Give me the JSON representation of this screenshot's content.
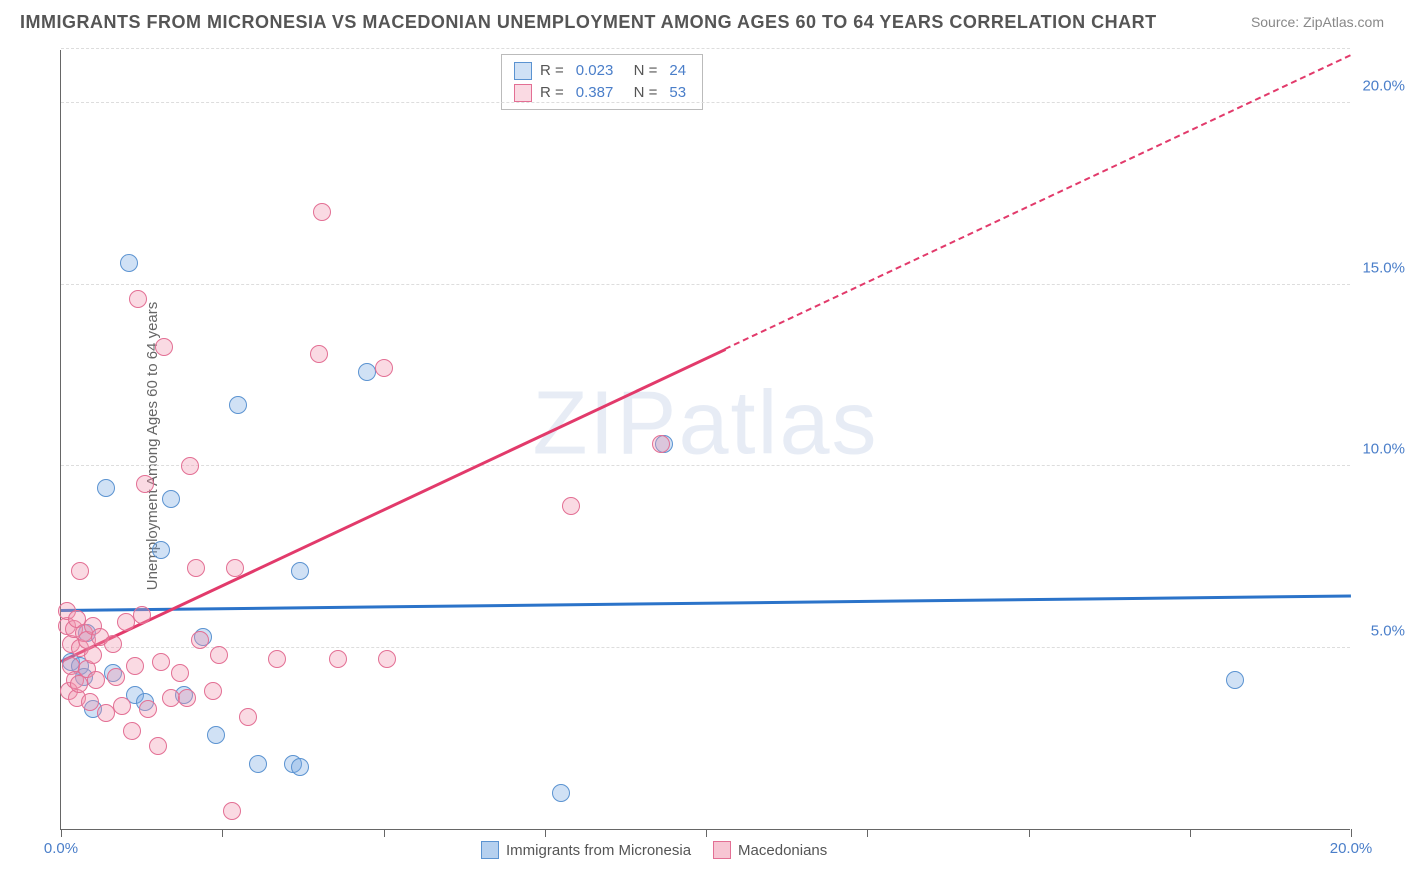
{
  "title": "IMMIGRANTS FROM MICRONESIA VS MACEDONIAN UNEMPLOYMENT AMONG AGES 60 TO 64 YEARS CORRELATION CHART",
  "source": "Source: ZipAtlas.com",
  "y_axis_label": "Unemployment Among Ages 60 to 64 years",
  "watermark": "ZIPatlas",
  "chart": {
    "type": "scatter",
    "xlim": [
      0,
      20
    ],
    "ylim": [
      0,
      21.5
    ],
    "x_ticks": [
      0,
      2.5,
      5,
      7.5,
      10,
      12.5,
      15,
      17.5,
      20
    ],
    "x_tick_labels": {
      "0": "0.0%",
      "20": "20.0%"
    },
    "y_gridlines": [
      5,
      10,
      15,
      20,
      21.5
    ],
    "y_tick_labels": {
      "5": "5.0%",
      "10": "10.0%",
      "15": "15.0%",
      "20": "20.0%"
    },
    "background_color": "#ffffff",
    "grid_color": "#dddddd",
    "point_radius": 9,
    "series": [
      {
        "name": "Immigrants from Micronesia",
        "fill": "rgba(120,170,225,0.35)",
        "stroke": "#5b93d1",
        "r_value": "0.023",
        "n_value": "24",
        "trend": {
          "color": "#2b73c9",
          "y_start": 6.0,
          "y_end": 6.4,
          "x_start": 0,
          "x_end": 20
        },
        "points": [
          [
            0.15,
            4.6
          ],
          [
            0.3,
            4.5
          ],
          [
            0.35,
            4.2
          ],
          [
            0.4,
            5.4
          ],
          [
            0.5,
            3.3
          ],
          [
            0.7,
            9.4
          ],
          [
            0.8,
            4.3
          ],
          [
            1.05,
            15.6
          ],
          [
            1.15,
            3.7
          ],
          [
            1.3,
            3.5
          ],
          [
            1.55,
            7.7
          ],
          [
            1.7,
            9.1
          ],
          [
            1.9,
            3.7
          ],
          [
            2.2,
            5.3
          ],
          [
            2.4,
            2.6
          ],
          [
            2.75,
            11.7
          ],
          [
            3.05,
            1.8
          ],
          [
            3.6,
            1.8
          ],
          [
            3.7,
            1.7
          ],
          [
            3.7,
            7.1
          ],
          [
            4.75,
            12.6
          ],
          [
            7.75,
            1.0
          ],
          [
            9.35,
            10.6
          ],
          [
            18.2,
            4.1
          ]
        ]
      },
      {
        "name": "Macedonians",
        "fill": "rgba(240,150,175,0.35)",
        "stroke": "#e36f94",
        "r_value": "0.387",
        "n_value": "53",
        "trend": {
          "color": "#e23a6b",
          "y_start": 4.6,
          "y_end": 21.3,
          "x_start": 0,
          "x_end": 20,
          "dash_after_x": 10.3
        },
        "points": [
          [
            0.1,
            5.6
          ],
          [
            0.1,
            6.0
          ],
          [
            0.12,
            3.8
          ],
          [
            0.15,
            4.5
          ],
          [
            0.15,
            5.1
          ],
          [
            0.2,
            5.5
          ],
          [
            0.22,
            4.1
          ],
          [
            0.25,
            3.6
          ],
          [
            0.25,
            5.8
          ],
          [
            0.28,
            4.0
          ],
          [
            0.3,
            5.0
          ],
          [
            0.3,
            7.1
          ],
          [
            0.35,
            5.4
          ],
          [
            0.4,
            4.4
          ],
          [
            0.4,
            5.2
          ],
          [
            0.45,
            3.5
          ],
          [
            0.5,
            4.8
          ],
          [
            0.5,
            5.6
          ],
          [
            0.55,
            4.1
          ],
          [
            0.6,
            5.3
          ],
          [
            0.7,
            3.2
          ],
          [
            0.8,
            5.1
          ],
          [
            0.85,
            4.2
          ],
          [
            0.95,
            3.4
          ],
          [
            1.0,
            5.7
          ],
          [
            1.1,
            2.7
          ],
          [
            1.15,
            4.5
          ],
          [
            1.2,
            14.6
          ],
          [
            1.25,
            5.9
          ],
          [
            1.3,
            9.5
          ],
          [
            1.35,
            3.3
          ],
          [
            1.5,
            2.3
          ],
          [
            1.55,
            4.6
          ],
          [
            1.6,
            13.3
          ],
          [
            1.7,
            3.6
          ],
          [
            1.85,
            4.3
          ],
          [
            1.95,
            3.6
          ],
          [
            2.0,
            10.0
          ],
          [
            2.1,
            7.2
          ],
          [
            2.15,
            5.2
          ],
          [
            2.35,
            3.8
          ],
          [
            2.45,
            4.8
          ],
          [
            2.65,
            0.5
          ],
          [
            2.7,
            7.2
          ],
          [
            2.9,
            3.1
          ],
          [
            3.35,
            4.7
          ],
          [
            4.0,
            13.1
          ],
          [
            4.05,
            17.0
          ],
          [
            4.3,
            4.7
          ],
          [
            5.0,
            12.7
          ],
          [
            5.05,
            4.7
          ],
          [
            7.9,
            8.9
          ],
          [
            9.3,
            10.6
          ]
        ]
      }
    ]
  },
  "legend_bottom": [
    {
      "label": "Immigrants from Micronesia",
      "fill": "rgba(120,170,225,0.55)",
      "stroke": "#5b93d1"
    },
    {
      "label": "Macedonians",
      "fill": "rgba(240,150,175,0.55)",
      "stroke": "#e36f94"
    }
  ]
}
